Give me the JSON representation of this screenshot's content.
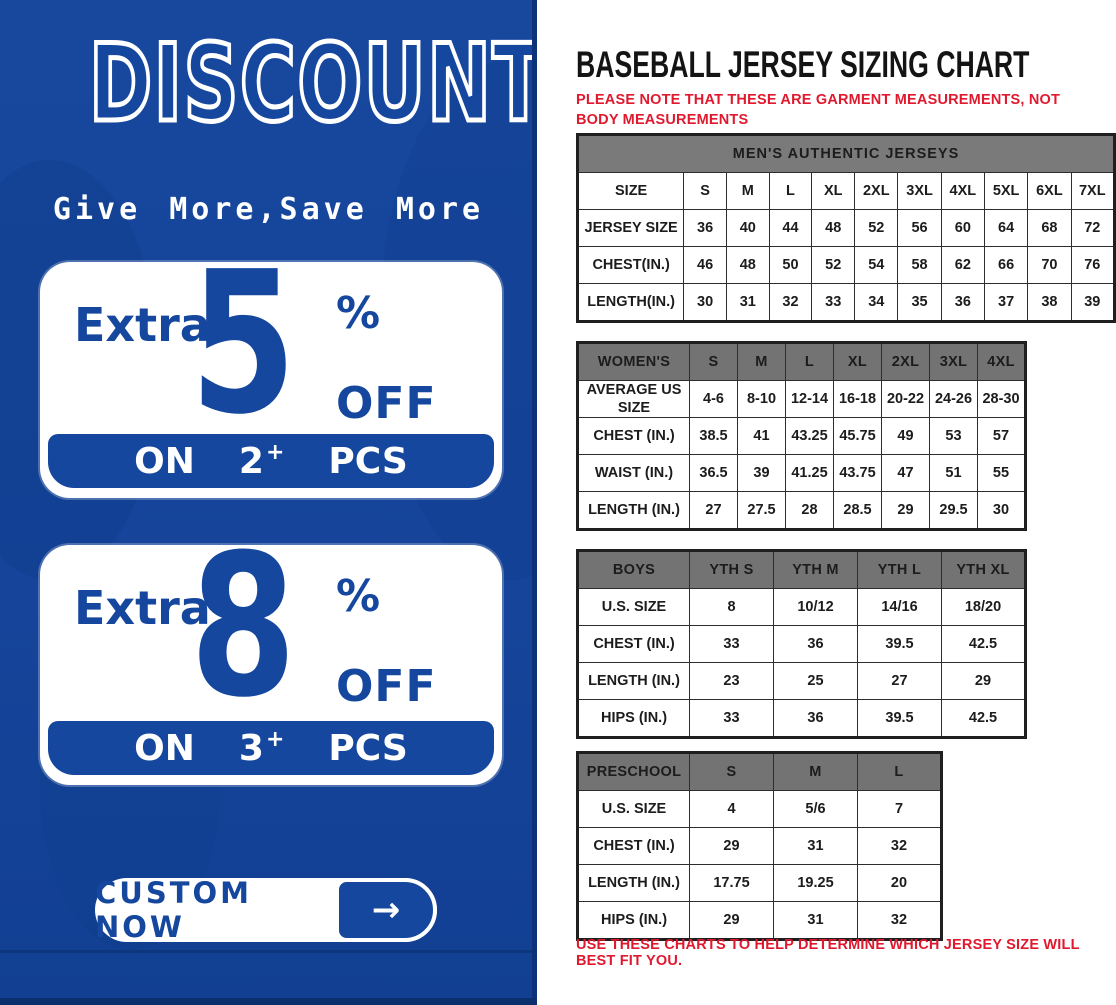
{
  "colors": {
    "brand_blue": "#15479E",
    "note_red": "#E0192F",
    "table_header_gray": "#7A7A7A",
    "panel_white": "#FFFFFF"
  },
  "left_panel": {
    "headline": "DISCOUNT",
    "subheadline": "Give More,Save More",
    "offers": [
      {
        "prefix": "Extra",
        "value": "5",
        "percent": "%",
        "off": "OFF",
        "on": "ON",
        "qty": "2",
        "plus": "+",
        "pcs": "PCS"
      },
      {
        "prefix": "Extra",
        "value": "8",
        "percent": "%",
        "off": "OFF",
        "on": "ON",
        "qty": "3",
        "plus": "+",
        "pcs": "PCS"
      }
    ],
    "cta": {
      "label": "CUSTOM NOW",
      "arrow": "→"
    }
  },
  "right_panel": {
    "title": "BASEBALL JERSEY SIZING CHART",
    "note_top": "PLEASE NOTE THAT THESE ARE GARMENT MEASUREMENTS, NOT BODY MEASUREMENTS",
    "note_bottom": "USE THESE CHARTS TO HELP DETERMINE WHICH JERSEY SIZE WILL BEST FIT YOU.",
    "tables": {
      "mens": {
        "banner": "MEN'S AUTHENTIC JERSEYS",
        "rows": [
          [
            "SIZE",
            "S",
            "M",
            "L",
            "XL",
            "2XL",
            "3XL",
            "4XL",
            "5XL",
            "6XL",
            "7XL"
          ],
          [
            "JERSEY SIZE",
            "36",
            "40",
            "44",
            "48",
            "52",
            "56",
            "60",
            "64",
            "68",
            "72"
          ],
          [
            "CHEST(IN.)",
            "46",
            "48",
            "50",
            "52",
            "54",
            "58",
            "62",
            "66",
            "70",
            "76"
          ],
          [
            "LENGTH(IN.)",
            "30",
            "31",
            "32",
            "33",
            "34",
            "35",
            "36",
            "37",
            "38",
            "39"
          ]
        ]
      },
      "womens": {
        "header_row": [
          "WOMEN'S",
          "S",
          "M",
          "L",
          "XL",
          "2XL",
          "3XL",
          "4XL"
        ],
        "rows": [
          [
            "AVERAGE US SIZE",
            "4-6",
            "8-10",
            "12-14",
            "16-18",
            "20-22",
            "24-26",
            "28-30"
          ],
          [
            "CHEST (IN.)",
            "38.5",
            "41",
            "43.25",
            "45.75",
            "49",
            "53",
            "57"
          ],
          [
            "WAIST (IN.)",
            "36.5",
            "39",
            "41.25",
            "43.75",
            "47",
            "51",
            "55"
          ],
          [
            "LENGTH (IN.)",
            "27",
            "27.5",
            "28",
            "28.5",
            "29",
            "29.5",
            "30"
          ]
        ]
      },
      "boys": {
        "header_row": [
          "BOYS",
          "YTH S",
          "YTH M",
          "YTH L",
          "YTH XL"
        ],
        "rows": [
          [
            "U.S. SIZE",
            "8",
            "10/12",
            "14/16",
            "18/20"
          ],
          [
            "CHEST (IN.)",
            "33",
            "36",
            "39.5",
            "42.5"
          ],
          [
            "LENGTH (IN.)",
            "23",
            "25",
            "27",
            "29"
          ],
          [
            "HIPS (IN.)",
            "33",
            "36",
            "39.5",
            "42.5"
          ]
        ]
      },
      "preschool": {
        "header_row": [
          "PRESCHOOL",
          "S",
          "M",
          "L"
        ],
        "rows": [
          [
            "U.S. SIZE",
            "4",
            "5/6",
            "7"
          ],
          [
            "CHEST (IN.)",
            "29",
            "31",
            "32"
          ],
          [
            "LENGTH (IN.)",
            "17.75",
            "19.25",
            "20"
          ],
          [
            "HIPS (IN.)",
            "29",
            "31",
            "32"
          ]
        ]
      }
    }
  }
}
